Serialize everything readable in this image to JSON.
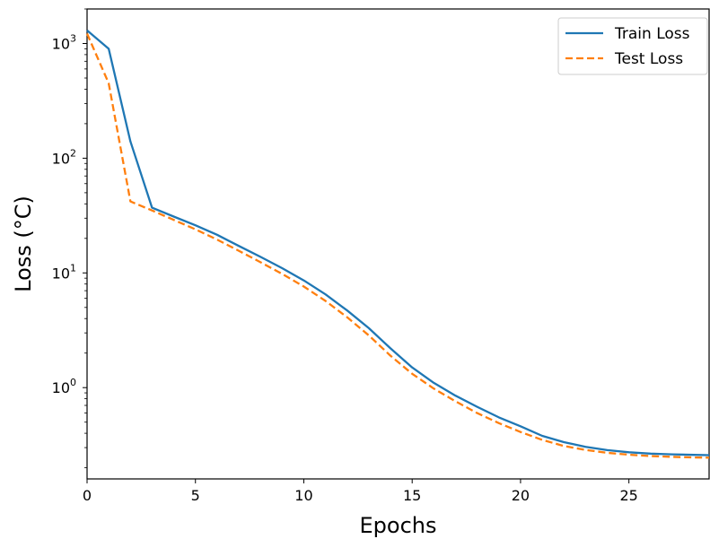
{
  "chart_data": {
    "type": "line",
    "xlabel": "Epochs",
    "ylabel": "Loss (°C)",
    "yscale": "log",
    "xlim": [
      0,
      28.7
    ],
    "ylim": [
      0.16,
      2000
    ],
    "x_ticks": [
      0,
      5,
      10,
      15,
      20,
      25
    ],
    "y_ticks": [
      {
        "value": 1,
        "base": "10",
        "exp": "0"
      },
      {
        "value": 10,
        "base": "10",
        "exp": "1"
      },
      {
        "value": 100,
        "base": "10",
        "exp": "2"
      },
      {
        "value": 1000,
        "base": "10",
        "exp": "3"
      }
    ],
    "grid": false,
    "legend_position": "top-right",
    "x": [
      0,
      1,
      2,
      3,
      4,
      5,
      6,
      7,
      8,
      9,
      10,
      11,
      12,
      13,
      14,
      15,
      16,
      17,
      18,
      19,
      20,
      21,
      22,
      23,
      24,
      25,
      26,
      27,
      28,
      28.7
    ],
    "series": [
      {
        "name": "Train Loss",
        "color": "#1f77b4",
        "dash": "solid",
        "values": [
          1300,
          900,
          140,
          37,
          31,
          26,
          21.5,
          17.2,
          13.8,
          11,
          8.6,
          6.5,
          4.7,
          3.3,
          2.2,
          1.5,
          1.1,
          0.85,
          0.68,
          0.55,
          0.46,
          0.38,
          0.335,
          0.305,
          0.285,
          0.273,
          0.266,
          0.262,
          0.259,
          0.258
        ]
      },
      {
        "name": "Test Loss",
        "color": "#ff7f0e",
        "dash": "dashed",
        "values": [
          1220,
          450,
          42,
          35,
          29,
          24,
          19.5,
          15.6,
          12.4,
          9.8,
          7.6,
          5.7,
          4.1,
          2.85,
          1.9,
          1.32,
          0.98,
          0.76,
          0.6,
          0.49,
          0.41,
          0.35,
          0.31,
          0.286,
          0.27,
          0.26,
          0.253,
          0.249,
          0.246,
          0.245
        ]
      }
    ]
  }
}
